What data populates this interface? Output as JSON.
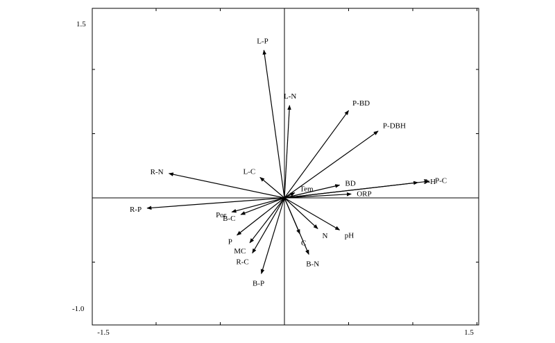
{
  "chart_data": {
    "type": "scatter",
    "title": "",
    "xlabel": "",
    "ylabel": "",
    "xlim": [
      -1.5,
      1.5
    ],
    "ylim": [
      -1.0,
      1.5
    ],
    "x_tick_labels": [
      "-1.5",
      "1.5"
    ],
    "y_tick_labels": [
      "1.5",
      "-1.0"
    ],
    "grid": false,
    "vectors": [
      {
        "label": "L-P",
        "x": -0.16,
        "y": 1.15
      },
      {
        "label": "L-N",
        "x": 0.04,
        "y": 0.72
      },
      {
        "label": "P-BD",
        "x": 0.5,
        "y": 0.68
      },
      {
        "label": "P-DBH",
        "x": 0.73,
        "y": 0.52
      },
      {
        "label": "R-N",
        "x": -0.9,
        "y": 0.19
      },
      {
        "label": "L-C",
        "x": -0.19,
        "y": 0.16
      },
      {
        "label": "P-H",
        "x": 1.04,
        "y": 0.12
      },
      {
        "label": "P-C",
        "x": 1.13,
        "y": 0.13
      },
      {
        "label": "Tem",
        "x": 0.08,
        "y": 0.04
      },
      {
        "label": "BD",
        "x": 0.43,
        "y": 0.1
      },
      {
        "label": "ORP",
        "x": 0.52,
        "y": 0.03
      },
      {
        "label": "R-P",
        "x": -1.07,
        "y": -0.08
      },
      {
        "label": "Por",
        "x": -0.41,
        "y": -0.11
      },
      {
        "label": "B-C",
        "x": -0.34,
        "y": -0.13
      },
      {
        "label": "P",
        "x": -0.37,
        "y": -0.29
      },
      {
        "label": "MC",
        "x": -0.27,
        "y": -0.35
      },
      {
        "label": "R-C",
        "x": -0.25,
        "y": -0.43
      },
      {
        "label": "B-P",
        "x": -0.18,
        "y": -0.59
      },
      {
        "label": "C",
        "x": 0.12,
        "y": -0.28
      },
      {
        "label": "B-N",
        "x": 0.19,
        "y": -0.44
      },
      {
        "label": "N",
        "x": 0.26,
        "y": -0.24
      },
      {
        "label": "pH",
        "x": 0.43,
        "y": -0.25
      }
    ]
  }
}
